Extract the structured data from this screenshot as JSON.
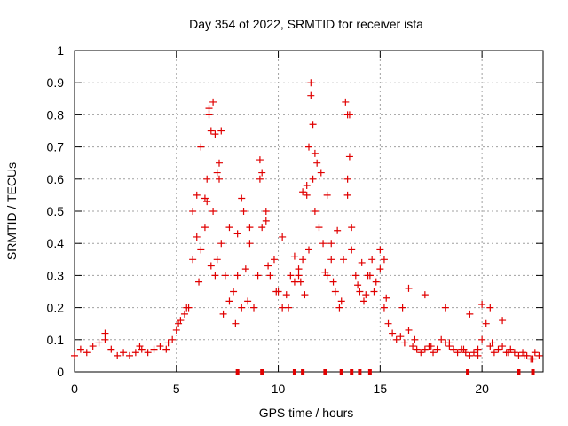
{
  "chart_data": {
    "type": "scatter",
    "title": "Day 354 of 2022, SRMTID for receiver ista",
    "xlabel": "GPS time / hours",
    "ylabel": "SRMTID / TECUs",
    "xlim": [
      0,
      23
    ],
    "ylim": [
      0,
      1
    ],
    "grid": true,
    "legend": "none",
    "marker": "+",
    "color": "#e00000",
    "xticks": [
      0,
      5,
      10,
      15,
      20
    ],
    "yticks": [
      0,
      0.1,
      0.2,
      0.3,
      0.4,
      0.5,
      0.6,
      0.7,
      0.8,
      0.9,
      1
    ],
    "xtick_labels": [
      "0",
      "5",
      "10",
      "15",
      "20"
    ],
    "ytick_labels": [
      "0",
      "0.1",
      "0.2",
      "0.3",
      "0.4",
      "0.5",
      "0.6",
      "0.7",
      "0.8",
      "0.9",
      "1"
    ],
    "series": [
      {
        "name": "SRMTID",
        "x": [
          0.0,
          0.3,
          0.6,
          0.9,
          1.2,
          1.5,
          1.8,
          2.1,
          2.4,
          2.7,
          3.0,
          3.3,
          3.6,
          3.9,
          4.2,
          4.5,
          4.8,
          5.0,
          5.2,
          5.4,
          5.6,
          5.8,
          6.0,
          6.2,
          6.4,
          6.5,
          6.6,
          6.7,
          6.8,
          6.9,
          7.0,
          7.1,
          7.2,
          7.4,
          7.6,
          7.8,
          8.0,
          8.2,
          8.4,
          8.6,
          8.8,
          9.0,
          9.1,
          9.2,
          9.4,
          9.6,
          9.8,
          10.0,
          10.2,
          10.4,
          10.6,
          10.8,
          11.0,
          11.2,
          11.4,
          11.5,
          11.6,
          11.7,
          11.8,
          12.0,
          12.2,
          12.4,
          12.6,
          12.8,
          13.0,
          13.2,
          13.4,
          13.5,
          13.6,
          13.8,
          14.0,
          14.2,
          14.4,
          14.6,
          14.8,
          15.0,
          15.2,
          15.4,
          15.6,
          15.8,
          16.0,
          16.2,
          16.4,
          16.6,
          16.8,
          17.0,
          17.2,
          17.4,
          17.6,
          17.8,
          18.0,
          18.2,
          18.4,
          18.6,
          18.8,
          19.0,
          19.2,
          19.4,
          19.6,
          19.8,
          20.0,
          20.2,
          20.4,
          20.6,
          20.8,
          21.0,
          21.2,
          21.4,
          21.6,
          21.8,
          22.0,
          22.2,
          22.4,
          22.6,
          22.8,
          6.6,
          6.8,
          6.9,
          7.0,
          7.1,
          7.2,
          6.4,
          6.5,
          11.6,
          11.7,
          11.8,
          13.3,
          13.4,
          13.5,
          13.4,
          9.1,
          9.2,
          8.2,
          8.3,
          11.2,
          11.4,
          11.9,
          12.1,
          12.4,
          5.8,
          6.0,
          6.2,
          7.6,
          8.0,
          8.6,
          9.4,
          10.2,
          10.8,
          11.0,
          12.6,
          12.9,
          13.6,
          14.1,
          14.5,
          15.0,
          15.2,
          16.4,
          17.2,
          18.2,
          19.4,
          20.0,
          20.4,
          21.0,
          1.5,
          3.2,
          4.6,
          5.1,
          5.5,
          6.1,
          6.7,
          7.3,
          7.9,
          8.5,
          9.5,
          9.9,
          10.5,
          11.1,
          11.3,
          11.5,
          12.3,
          12.7,
          13.1,
          13.9,
          14.3,
          14.7,
          15.3,
          16.1,
          16.7,
          17.5,
          18.4,
          19.1,
          19.8,
          20.5,
          21.3,
          22.1,
          22.5
        ],
        "y": [
          0.05,
          0.07,
          0.06,
          0.08,
          0.09,
          0.12,
          0.07,
          0.05,
          0.06,
          0.05,
          0.06,
          0.07,
          0.06,
          0.07,
          0.08,
          0.07,
          0.1,
          0.13,
          0.16,
          0.18,
          0.2,
          0.35,
          0.55,
          0.7,
          0.45,
          0.6,
          0.8,
          0.75,
          0.5,
          0.3,
          0.35,
          0.65,
          0.4,
          0.3,
          0.22,
          0.25,
          0.3,
          0.2,
          0.32,
          0.45,
          0.2,
          0.3,
          0.6,
          0.45,
          0.5,
          0.3,
          0.35,
          0.25,
          0.2,
          0.24,
          0.3,
          0.28,
          0.3,
          0.35,
          0.55,
          0.7,
          0.9,
          0.6,
          0.5,
          0.45,
          0.4,
          0.3,
          0.35,
          0.25,
          0.2,
          0.35,
          0.55,
          0.8,
          0.45,
          0.3,
          0.25,
          0.22,
          0.3,
          0.35,
          0.28,
          0.32,
          0.2,
          0.15,
          0.12,
          0.1,
          0.11,
          0.09,
          0.13,
          0.08,
          0.07,
          0.06,
          0.07,
          0.08,
          0.06,
          0.07,
          0.1,
          0.09,
          0.08,
          0.07,
          0.06,
          0.07,
          0.06,
          0.05,
          0.06,
          0.07,
          0.1,
          0.15,
          0.08,
          0.06,
          0.07,
          0.08,
          0.06,
          0.07,
          0.06,
          0.05,
          0.06,
          0.05,
          0.04,
          0.06,
          0.05,
          0.82,
          0.84,
          0.74,
          0.62,
          0.6,
          0.75,
          0.54,
          0.53,
          0.86,
          0.77,
          0.68,
          0.84,
          0.8,
          0.67,
          0.6,
          0.66,
          0.62,
          0.54,
          0.5,
          0.56,
          0.58,
          0.65,
          0.62,
          0.55,
          0.5,
          0.42,
          0.38,
          0.45,
          0.43,
          0.4,
          0.47,
          0.42,
          0.36,
          0.32,
          0.4,
          0.44,
          0.38,
          0.34,
          0.3,
          0.38,
          0.35,
          0.26,
          0.24,
          0.2,
          0.18,
          0.21,
          0.2,
          0.16,
          0.1,
          0.08,
          0.09,
          0.15,
          0.2,
          0.28,
          0.33,
          0.18,
          0.15,
          0.22,
          0.33,
          0.25,
          0.2,
          0.28,
          0.24,
          0.38,
          0.31,
          0.28,
          0.22,
          0.27,
          0.24,
          0.25,
          0.23,
          0.2,
          0.1,
          0.08,
          0.09,
          0.07,
          0.05,
          0.09,
          0.06,
          0.05,
          0.04
        ],
        "zero_points_x": [
          8.0,
          9.2,
          10.8,
          11.2,
          12.3,
          13.1,
          13.6,
          14.0,
          14.5,
          19.3,
          21.8,
          22.5
        ]
      }
    ]
  }
}
